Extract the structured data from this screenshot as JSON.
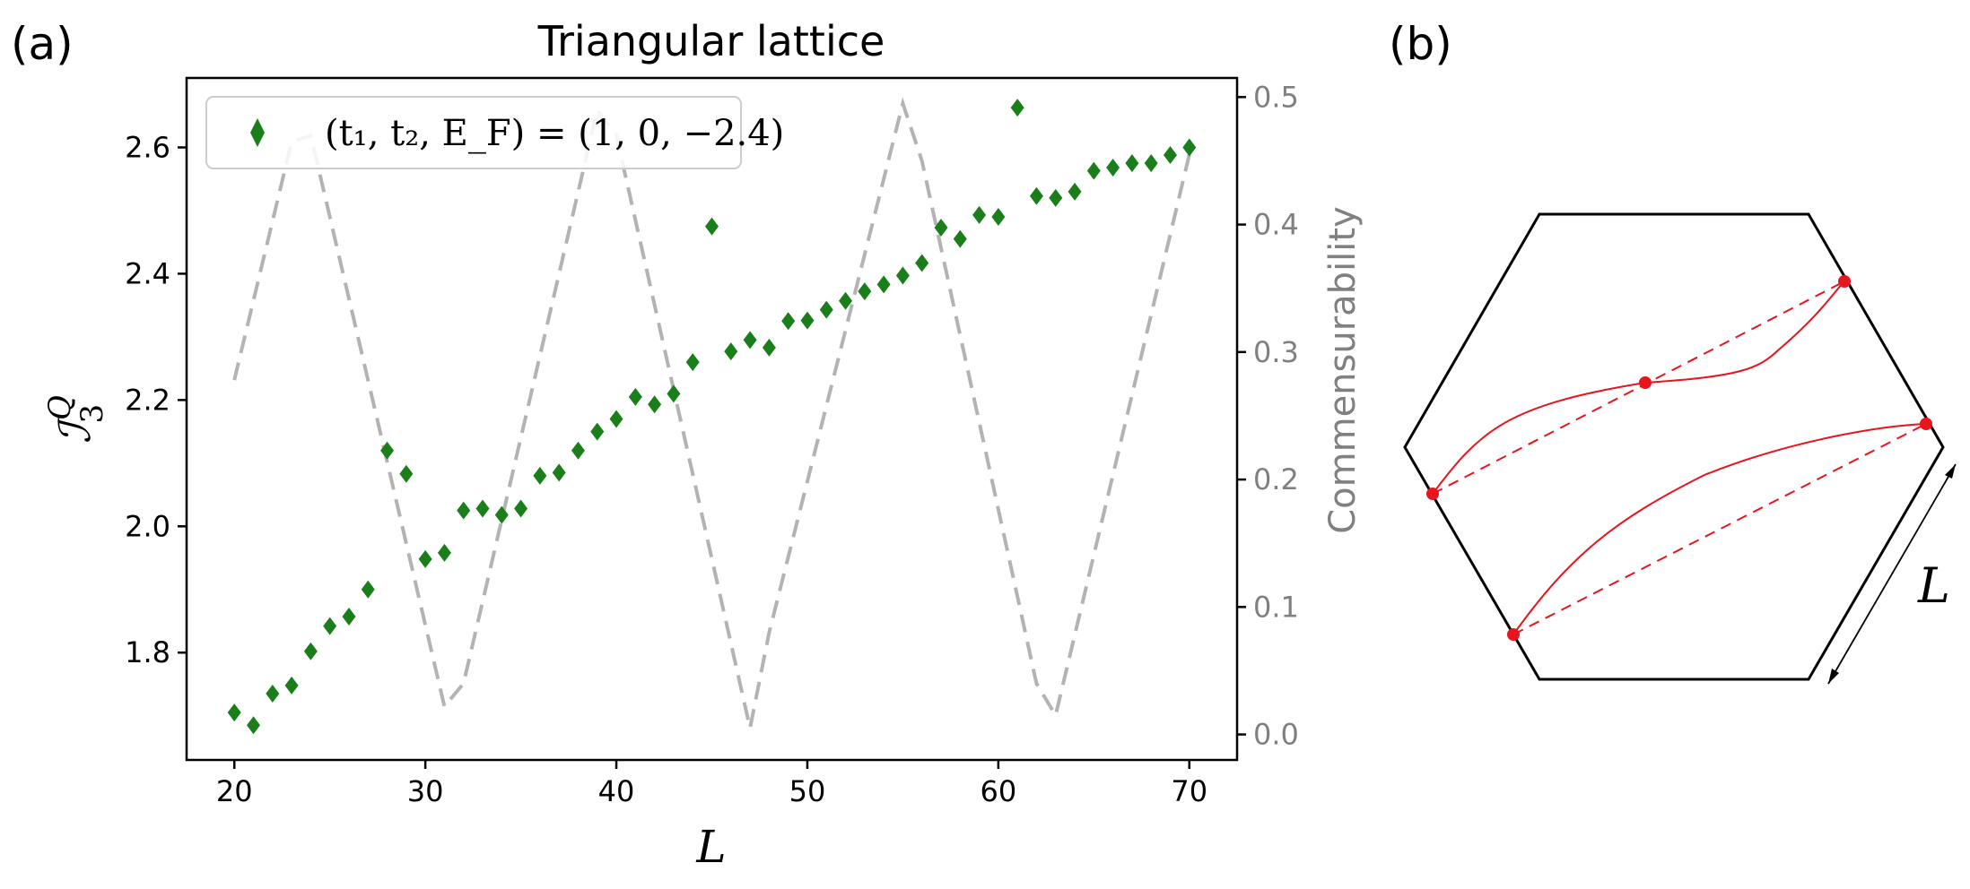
{
  "panel_a_label": "(a)",
  "panel_b_label": "(b)",
  "colors": {
    "marker": "#1a7f1a",
    "commensurability": "#b3b3b3",
    "right_axis_text": "#808080",
    "lattice_line": "#e8141e",
    "hexagon": "#000000",
    "axis": "#000000"
  },
  "chart_data": [
    {
      "type": "scatter",
      "title": "Triangular lattice",
      "xlabel": "L",
      "ylabel": "ℐ",
      "ylabel_sub": "3",
      "ylabel_sup": "Q",
      "y2label": "Commensurability",
      "xlim": [
        17.5,
        72.5
      ],
      "ylim": [
        1.63,
        2.71
      ],
      "y2lim": [
        -0.02,
        0.515
      ],
      "xticks": [
        20,
        30,
        40,
        50,
        60,
        70
      ],
      "yticks": [
        1.8,
        2.0,
        2.2,
        2.4,
        2.6
      ],
      "y2ticks": [
        0.0,
        0.1,
        0.2,
        0.3,
        0.4,
        0.5
      ],
      "legend": {
        "label": "(t₁, t₂, E_F) = (1, 0, −2.4)",
        "placement": "upper-left"
      },
      "series": [
        {
          "name": "(t₁, t₂, E_F) = (1, 0, −2.4)",
          "axis": "left",
          "style": "diamond-markers",
          "x": [
            20,
            21,
            22,
            23,
            24,
            25,
            26,
            27,
            28,
            29,
            30,
            31,
            32,
            33,
            34,
            35,
            36,
            37,
            38,
            39,
            40,
            41,
            42,
            43,
            44,
            45,
            46,
            47,
            48,
            49,
            50,
            51,
            52,
            53,
            54,
            55,
            56,
            57,
            58,
            59,
            60,
            61,
            62,
            63,
            64,
            65,
            66,
            67,
            68,
            69,
            70
          ],
          "y": [
            1.705,
            1.685,
            1.735,
            1.748,
            1.802,
            1.842,
            1.857,
            1.9,
            2.12,
            2.083,
            1.948,
            1.958,
            2.025,
            2.028,
            2.018,
            2.028,
            2.08,
            2.085,
            2.12,
            2.15,
            2.17,
            2.205,
            2.193,
            2.21,
            2.26,
            2.475,
            2.277,
            2.295,
            2.283,
            2.325,
            2.326,
            2.343,
            2.357,
            2.372,
            2.383,
            2.397,
            2.417,
            2.473,
            2.455,
            2.493,
            2.49,
            2.663,
            2.523,
            2.52,
            2.53,
            2.563,
            2.568,
            2.575,
            2.575,
            2.588,
            2.6
          ]
        },
        {
          "name": "Commensurability",
          "axis": "right",
          "style": "dashed-line",
          "x": [
            20,
            23,
            24,
            31,
            32,
            39,
            40,
            47,
            48,
            55,
            56,
            62,
            63,
            70
          ],
          "y": [
            0.278,
            0.465,
            0.47,
            0.022,
            0.04,
            0.49,
            0.47,
            0.005,
            0.08,
            0.495,
            0.45,
            0.04,
            0.015,
            0.455
          ]
        }
      ]
    }
  ],
  "panel_b": {
    "length_label": "L"
  }
}
